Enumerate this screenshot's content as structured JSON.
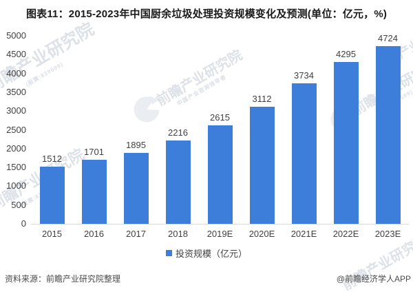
{
  "title": "图表11：2015-2023年中国厨余垃圾处理投资规模变化及预测(单位：亿元，%)",
  "legend": {
    "label": "投资规模（亿元）",
    "marker_color": "#3E7EDB"
  },
  "footer": {
    "source": "资料来源：前瞻产业研究院整理",
    "credit": "@前瞻经济学人APP"
  },
  "watermark": {
    "brand_text": "前瞻产业研究院",
    "stock_text": "(股票:839599)",
    "tagline_text": "中国产业咨询领导者",
    "color": "#c4ccd7"
  },
  "chart_data": {
    "type": "bar",
    "categories": [
      "2015",
      "2016",
      "2017",
      "2018",
      "2019E",
      "2020E",
      "2021E",
      "2022E",
      "2023E"
    ],
    "values": [
      1512,
      1701,
      1895,
      2216,
      2615,
      3112,
      3734,
      4295,
      4724
    ],
    "title": "图表11：2015-2023年中国厨余垃圾处理投资规模变化及预测(单位：亿元，%)",
    "xlabel": "",
    "ylabel": "",
    "ylim": [
      0,
      5000
    ],
    "ytick_step": 500,
    "bar_color": "#3E7EDB",
    "value_labels": true,
    "grid": false,
    "legend_entries": [
      "投资规模（亿元）"
    ],
    "legend_position": "bottom"
  }
}
